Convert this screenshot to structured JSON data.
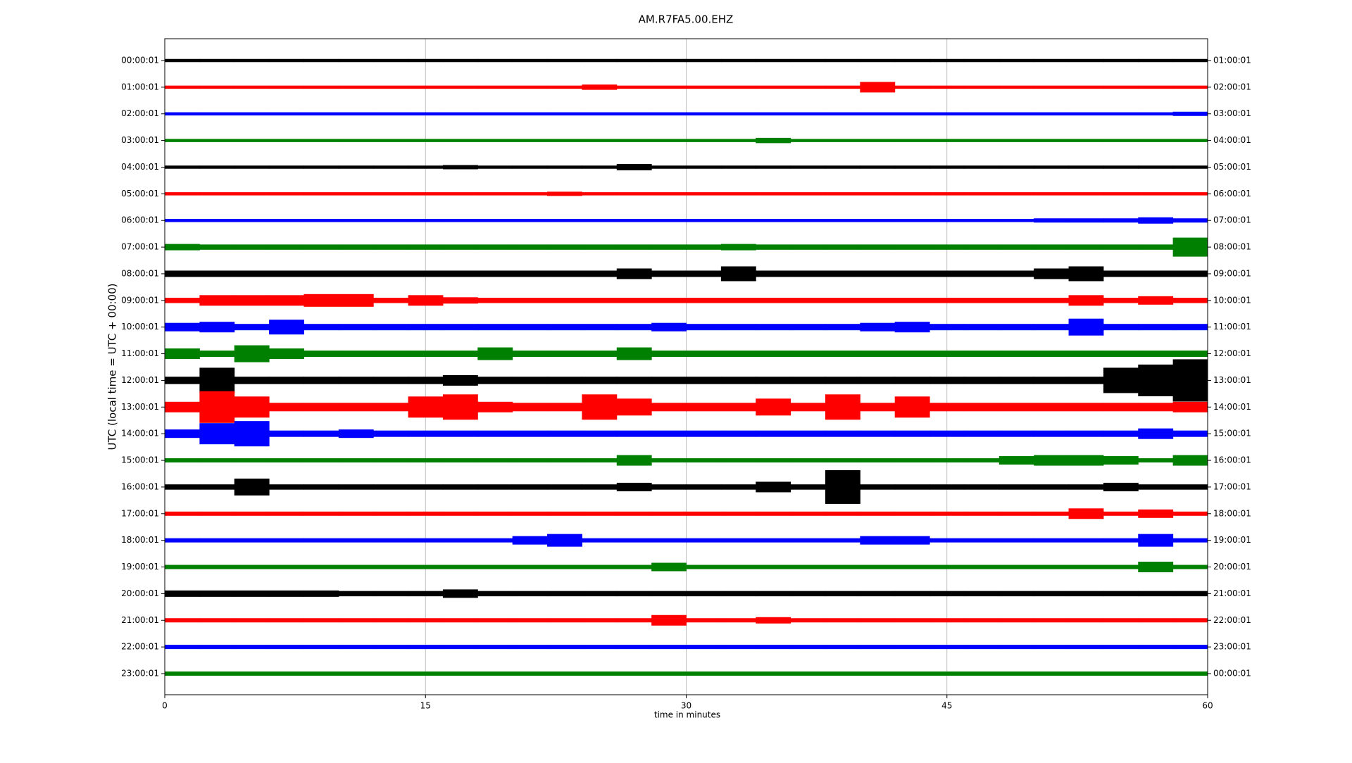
{
  "chart_data": {
    "type": "dayplot",
    "title": "AM.R7FA5.00.EHZ",
    "xlabel": "time in minutes",
    "ylabel": "UTC (local time = UTC + 00:00)",
    "xlim": [
      0,
      60
    ],
    "xticks": [
      0,
      15,
      30,
      45,
      60
    ],
    "grid": true,
    "categories": [
      "00:00:01",
      "01:00:01",
      "02:00:01",
      "03:00:01",
      "04:00:01",
      "05:00:01",
      "06:00:01",
      "07:00:01",
      "08:00:01",
      "09:00:01",
      "10:00:01",
      "11:00:01",
      "12:00:01",
      "13:00:01",
      "14:00:01",
      "15:00:01",
      "16:00:01",
      "17:00:01",
      "18:00:01",
      "19:00:01",
      "20:00:01",
      "21:00:01",
      "22:00:01",
      "23:00:01"
    ],
    "right_labels": [
      "01:00:01",
      "02:00:01",
      "03:00:01",
      "04:00:01",
      "05:00:01",
      "06:00:01",
      "07:00:01",
      "08:00:01",
      "09:00:01",
      "10:00:01",
      "11:00:01",
      "12:00:01",
      "13:00:01",
      "14:00:01",
      "15:00:01",
      "16:00:01",
      "17:00:01",
      "18:00:01",
      "19:00:01",
      "20:00:01",
      "21:00:01",
      "22:00:01",
      "23:00:01",
      "00:00:01"
    ],
    "x": [
      1,
      3,
      5,
      7,
      9,
      11,
      13,
      15,
      17,
      19,
      21,
      23,
      25,
      27,
      29,
      31,
      33,
      35,
      37,
      39,
      41,
      43,
      45,
      47,
      49,
      51,
      53,
      55,
      57,
      59
    ],
    "traces": [
      {
        "color": "#000000",
        "values": [
          1.5,
          1.5,
          1.5,
          1.5,
          1.5,
          1.5,
          1.5,
          1.5,
          1.5,
          1.5,
          1.5,
          1.5,
          1.5,
          1.5,
          1.5,
          1.5,
          1.5,
          1.5,
          1.5,
          1.5,
          1.5,
          1.5,
          1.5,
          1.5,
          1.5,
          1.5,
          1.5,
          1.5,
          1.5,
          1.5
        ]
      },
      {
        "color": "#ff0000",
        "values": [
          1.5,
          1.5,
          1.5,
          1.5,
          1.5,
          1.5,
          1.5,
          1.5,
          1.5,
          1.5,
          1.5,
          1.5,
          2.5,
          1.5,
          1.5,
          1.5,
          1.5,
          1.5,
          1.5,
          1.5,
          5,
          1.5,
          1.5,
          1.5,
          1.5,
          1.5,
          1.5,
          1.5,
          1.5,
          1.5
        ]
      },
      {
        "color": "#0000ff",
        "values": [
          1.5,
          1.5,
          1.5,
          1.5,
          1.5,
          1.5,
          1.5,
          1.5,
          1.5,
          1.5,
          1.5,
          1.5,
          1.5,
          1.5,
          1.5,
          1.5,
          1.5,
          1.5,
          1.5,
          1.5,
          1.5,
          1.5,
          1.5,
          1.5,
          1.5,
          1.5,
          1.5,
          1.5,
          1.5,
          2
        ]
      },
      {
        "color": "#008000",
        "values": [
          1.5,
          1.5,
          1.5,
          1.5,
          1.5,
          1.5,
          1.5,
          1.5,
          1.5,
          1.5,
          1.5,
          1.5,
          1.5,
          1.5,
          1.5,
          1.5,
          1.5,
          2.5,
          1.5,
          1.5,
          1.5,
          1.5,
          1.5,
          1.5,
          1.5,
          1.5,
          1.5,
          1.5,
          1.5,
          1.5
        ]
      },
      {
        "color": "#000000",
        "values": [
          1.5,
          1.5,
          1.5,
          1.5,
          1.5,
          1.5,
          1.5,
          1.5,
          2,
          1.5,
          1.5,
          1.5,
          1.5,
          3,
          1.5,
          1.5,
          1.5,
          1.5,
          1.5,
          1.5,
          1.5,
          1.5,
          1.5,
          1.5,
          1.5,
          1.5,
          1.5,
          1.5,
          1.5,
          1.5
        ]
      },
      {
        "color": "#ff0000",
        "values": [
          1.5,
          1.5,
          1.5,
          1.5,
          1.5,
          1.5,
          1.5,
          1.5,
          1.5,
          1.5,
          1.5,
          2,
          1.5,
          1.5,
          1.5,
          1.5,
          1.5,
          1.5,
          1.5,
          1.5,
          1.5,
          1.5,
          1.5,
          1.5,
          1.5,
          1.5,
          1.5,
          1.5,
          1.5,
          1.5
        ]
      },
      {
        "color": "#0000ff",
        "values": [
          1.5,
          1.5,
          1.5,
          1.5,
          1.5,
          1.5,
          1.5,
          1.5,
          1.5,
          1.5,
          1.5,
          1.5,
          1.5,
          1.5,
          1.5,
          1.5,
          1.5,
          1.5,
          1.5,
          1.5,
          1.5,
          1.5,
          1.5,
          1.5,
          1.5,
          2,
          2,
          2,
          3,
          2
        ]
      },
      {
        "color": "#008000",
        "values": [
          3,
          2.5,
          2.5,
          2.5,
          2.5,
          2.5,
          2.5,
          2.5,
          2.5,
          2.5,
          2.5,
          2.5,
          2.5,
          2.5,
          2.5,
          2.5,
          3,
          2.5,
          2.5,
          2.5,
          2.5,
          2.5,
          2.5,
          2.5,
          2.5,
          2.5,
          2.5,
          2.5,
          2.5,
          9
        ]
      },
      {
        "color": "#000000",
        "values": [
          3,
          3,
          3,
          3,
          3,
          3,
          3,
          3,
          3,
          3,
          3,
          3,
          3,
          5,
          3,
          3,
          7,
          3,
          3,
          3,
          3,
          3,
          3,
          3,
          3,
          5,
          7,
          3,
          3,
          3
        ]
      },
      {
        "color": "#ff0000",
        "values": [
          2.5,
          5,
          5,
          5,
          6,
          6,
          2.5,
          5,
          3,
          2.5,
          2.5,
          2.5,
          2.5,
          2.5,
          2.5,
          2.5,
          2.5,
          2.5,
          2.5,
          2.5,
          2.5,
          2.5,
          2.5,
          2.5,
          2.5,
          2.5,
          5,
          2.5,
          4,
          2.5
        ]
      },
      {
        "color": "#0000ff",
        "values": [
          4,
          5,
          3,
          7,
          3,
          3,
          3,
          3,
          3,
          3,
          3,
          3,
          3,
          3,
          4,
          3,
          3,
          3,
          3,
          3,
          4,
          5,
          3,
          3,
          3,
          3,
          8,
          3,
          3,
          3
        ]
      },
      {
        "color": "#008000",
        "values": [
          5,
          3,
          8,
          5,
          3,
          3,
          3,
          3,
          3,
          6,
          3,
          3,
          3,
          6,
          3,
          3,
          3,
          3,
          3,
          3,
          3,
          3,
          3,
          3,
          3,
          3,
          3,
          3,
          3,
          3
        ]
      },
      {
        "color": "#000000",
        "values": [
          3.5,
          12,
          3.5,
          3.5,
          3.5,
          3.5,
          3.5,
          3.5,
          5,
          3.5,
          3.5,
          3.5,
          3.5,
          3.5,
          3.5,
          3.5,
          3.5,
          3.5,
          3.5,
          3.5,
          3.5,
          3.5,
          3.5,
          3.5,
          3.5,
          3.5,
          3.5,
          12,
          15,
          20
        ]
      },
      {
        "color": "#ff0000",
        "values": [
          5,
          15,
          10,
          4,
          4,
          4,
          4,
          10,
          12,
          5,
          4,
          4,
          12,
          8,
          4,
          4,
          4,
          8,
          4,
          12,
          4,
          10,
          4,
          4,
          4,
          4,
          4,
          4,
          4,
          5
        ]
      },
      {
        "color": "#0000ff",
        "values": [
          4,
          10,
          12,
          3,
          3,
          4,
          3,
          3,
          3,
          3,
          3,
          3,
          3,
          3,
          3,
          3,
          3,
          3,
          3,
          3,
          3,
          3,
          3,
          3,
          3,
          3,
          3,
          3,
          5,
          3
        ]
      },
      {
        "color": "#008000",
        "values": [
          2,
          2,
          2,
          2,
          2,
          2,
          2,
          2,
          2,
          2,
          2,
          2,
          2,
          5,
          2,
          2,
          2,
          2,
          2,
          2,
          2,
          2,
          2,
          2,
          4,
          5,
          5,
          4,
          2,
          5
        ]
      },
      {
        "color": "#000000",
        "values": [
          2.5,
          2.5,
          8,
          2.5,
          2.5,
          2.5,
          2.5,
          2.5,
          2.5,
          2.5,
          2.5,
          2.5,
          2.5,
          4,
          2.5,
          2.5,
          2.5,
          5,
          2.5,
          16,
          2.5,
          2.5,
          2.5,
          2.5,
          2.5,
          2.5,
          2.5,
          4,
          2.5,
          2.5
        ]
      },
      {
        "color": "#ff0000",
        "values": [
          2,
          2,
          2,
          2,
          2,
          2,
          2,
          2,
          2,
          2,
          2,
          2,
          2,
          2,
          2,
          2,
          2,
          2,
          2,
          2,
          2,
          2,
          2,
          2,
          2,
          2,
          5,
          2,
          4,
          2
        ]
      },
      {
        "color": "#0000ff",
        "values": [
          2,
          2,
          2,
          2,
          2,
          2,
          2,
          2,
          2,
          2,
          4,
          6,
          2,
          2,
          2,
          2,
          2,
          2,
          2,
          2,
          4,
          4,
          2,
          2,
          2,
          2,
          2,
          2,
          6,
          2
        ]
      },
      {
        "color": "#008000",
        "values": [
          2,
          2,
          2,
          2,
          2,
          2,
          2,
          2,
          2,
          2,
          2,
          2,
          2,
          2,
          4,
          2,
          2,
          2,
          2,
          2,
          2,
          2,
          2,
          2,
          2,
          2,
          2,
          2,
          5,
          2
        ]
      },
      {
        "color": "#000000",
        "values": [
          3,
          3,
          3,
          3,
          3,
          2.5,
          2.5,
          2.5,
          4,
          2.5,
          2.5,
          2.5,
          2.5,
          2.5,
          2.5,
          2.5,
          2.5,
          2.5,
          2.5,
          2.5,
          2.5,
          2.5,
          2.5,
          2.5,
          2.5,
          2.5,
          2.5,
          2.5,
          2.5,
          2.5
        ]
      },
      {
        "color": "#ff0000",
        "values": [
          2,
          2,
          2,
          2,
          2,
          2,
          2,
          2,
          2,
          2,
          2,
          2,
          2,
          2,
          5,
          2,
          2,
          3,
          2,
          2,
          2,
          2,
          2,
          2,
          2,
          2,
          2,
          2,
          2,
          2
        ]
      },
      {
        "color": "#0000ff",
        "values": [
          2,
          2,
          2,
          2,
          2,
          2,
          2,
          2,
          2,
          2,
          2,
          2,
          2,
          2,
          2,
          2,
          2,
          2,
          2,
          2,
          2,
          2,
          2,
          2,
          2,
          2,
          2,
          2,
          2,
          2
        ]
      },
      {
        "color": "#008000",
        "values": [
          2,
          2,
          2,
          2,
          2,
          2,
          2,
          2,
          2,
          2,
          2,
          2,
          2,
          2,
          2,
          2,
          2,
          2,
          2,
          2,
          2,
          2,
          2,
          2,
          2,
          2,
          2,
          2,
          2,
          2
        ]
      }
    ]
  }
}
